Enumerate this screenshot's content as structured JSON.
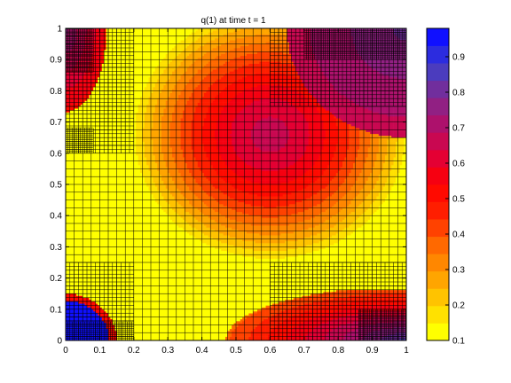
{
  "chart_data": {
    "type": "heatmap",
    "title": "q(1)   at time t = 1",
    "xlabel": "",
    "ylabel": "",
    "xlim": [
      0,
      1
    ],
    "ylim": [
      0,
      1
    ],
    "x_ticks": [
      "0",
      "0.1",
      "0.2",
      "0.3",
      "0.4",
      "0.5",
      "0.6",
      "0.7",
      "0.8",
      "0.9",
      "1"
    ],
    "y_ticks": [
      "0",
      "0.1",
      "0.2",
      "0.3",
      "0.4",
      "0.5",
      "0.6",
      "0.7",
      "0.8",
      "0.9",
      "1"
    ],
    "colorbar": {
      "range": [
        0.1,
        0.98
      ],
      "ticks": [
        "0.1",
        "0.2",
        "0.3",
        "0.4",
        "0.5",
        "0.6",
        "0.7",
        "0.8",
        "0.9"
      ],
      "colormap": [
        "#ffff00",
        "#ffcc00",
        "#ff9900",
        "#ff6600",
        "#ff2200",
        "#ff0000",
        "#e0003a",
        "#b0106a",
        "#802890",
        "#4040c8",
        "#1010ff"
      ]
    },
    "grid": "adaptive mesh overlay",
    "fields": {
      "background": 0.1,
      "main_blob": {
        "center": [
          0.6,
          0.66
        ],
        "radius": 0.42,
        "peak": 0.66
      },
      "corner_top_left": {
        "center": [
          0.0,
          1.0
        ],
        "radius": 0.12,
        "peak": 0.75
      },
      "corner_bottom_left": {
        "center": [
          0.0,
          0.0
        ],
        "radius": 0.15,
        "peak": 0.95
      },
      "corner_bottom_right": {
        "center": [
          1.0,
          0.0
        ],
        "radius": 0.45,
        "peak": 0.85
      }
    },
    "refined_patches": [
      {
        "x": [
          0.0,
          0.2
        ],
        "y": [
          0.6,
          1.0
        ],
        "cell": 0.0125
      },
      {
        "x": [
          0.0,
          0.2
        ],
        "y": [
          0.0,
          0.25
        ],
        "cell": 0.0125
      },
      {
        "x": [
          0.6,
          1.0
        ],
        "y": [
          0.0,
          0.25
        ],
        "cell": 0.0125
      },
      {
        "x": [
          0.6,
          1.0
        ],
        "y": [
          0.75,
          1.0
        ],
        "cell": 0.0125
      }
    ],
    "fine_patches": [
      {
        "x": [
          0.0,
          0.08
        ],
        "y": [
          0.86,
          1.0
        ],
        "cell": 0.00625
      },
      {
        "x": [
          0.0,
          0.08
        ],
        "y": [
          0.6,
          0.68
        ],
        "cell": 0.00625
      },
      {
        "x": [
          0.0,
          0.2
        ],
        "y": [
          0.0,
          0.06
        ],
        "cell": 0.00625
      },
      {
        "x": [
          0.86,
          1.0
        ],
        "y": [
          0.0,
          0.1
        ],
        "cell": 0.00625
      },
      {
        "x": [
          0.7,
          1.0
        ],
        "y": [
          0.9,
          1.0
        ],
        "cell": 0.00625
      }
    ],
    "base_cell": 0.025
  }
}
